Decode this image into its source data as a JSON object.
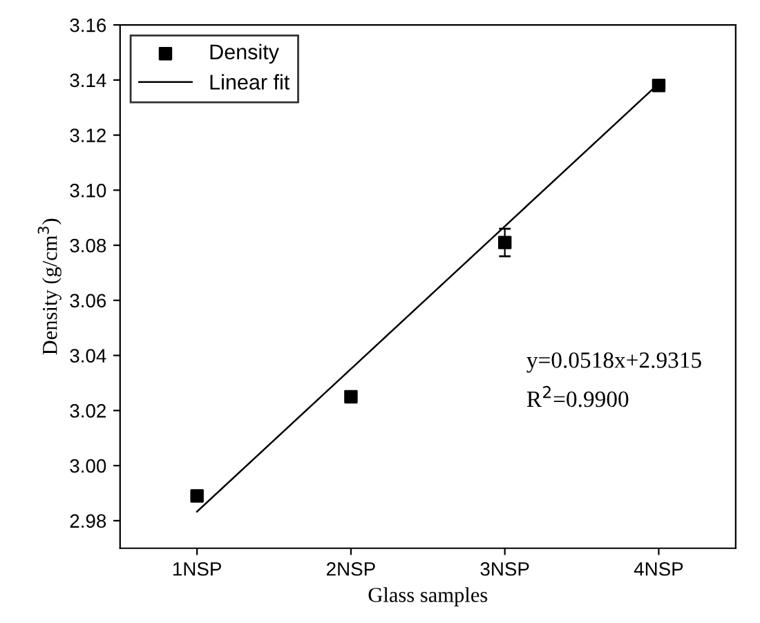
{
  "chart_data": {
    "type": "scatter",
    "xlabel": "Glass samples",
    "ylabel": "Density (g/cm$^{3}$)",
    "categories": [
      "1NSP",
      "2NSP",
      "3NSP",
      "4NSP"
    ],
    "series": [
      {
        "name": "Density",
        "color": "#000000",
        "marker": "square",
        "values": [
          2.989,
          3.025,
          3.081,
          3.138
        ],
        "errors": [
          null,
          null,
          0.005,
          null
        ]
      },
      {
        "name": "Linear fit",
        "type": "line",
        "color": "#000000",
        "line_style": "solid",
        "values": [
          2.9833,
          3.0351,
          3.0869,
          3.1387
        ]
      }
    ],
    "ylim": [
      2.97,
      3.16
    ],
    "yticks": [
      2.98,
      {
        "value": 3.0,
        "label": "3.00"
      },
      3.02,
      3.04,
      3.06,
      3.08,
      {
        "value": 3.1,
        "label": "3.10"
      },
      3.12,
      3.14,
      3.16
    ],
    "annotations": [
      "y=0.0518x+2.9315",
      "R$^{2}$=0.9900"
    ],
    "legend": "top left",
    "grid": false
  }
}
